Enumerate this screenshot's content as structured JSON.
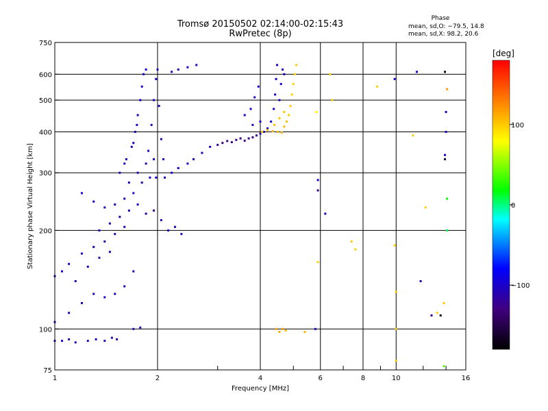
{
  "header": {
    "title_line1": "Tromsø 20150502 02:14:00-02:15:43",
    "title_line2": "RwPretec (8p)",
    "phase_heading": "Phase",
    "phase_o": "mean, sd,O: −79.5, 14.8",
    "phase_x": "mean, sd,X:  98.2, 20.6"
  },
  "chart_data": {
    "type": "scatter",
    "title": "Tromsø 20150502 02:14:00-02:15:43",
    "subtitle": "RwPretec (8p)",
    "xlabel": "Frequency [MHz]",
    "ylabel": "Stationary phase Virtual Height [km]",
    "x_scale": "log",
    "y_scale": "log",
    "xlim": [
      1,
      16
    ],
    "ylim": [
      75,
      750
    ],
    "x_ticks": [
      1,
      2,
      4,
      6,
      8,
      10,
      16
    ],
    "x_tick_labels": [
      "1",
      "2",
      "4",
      "6",
      "8",
      "10",
      "16"
    ],
    "y_ticks": [
      75,
      100,
      200,
      300,
      400,
      500,
      600,
      750
    ],
    "y_tick_labels": [
      "75",
      "100",
      "200",
      "300",
      "400",
      "500",
      "600",
      "750"
    ],
    "grid": true,
    "colorbar": {
      "label": "[deg]",
      "range": [
        -180,
        180
      ],
      "ticks": [
        100,
        0,
        -100
      ],
      "tick_labels": [
        "100",
        "0",
        "−100"
      ],
      "colors": [
        "#ff0000",
        "#ff8000",
        "#ffff00",
        "#00ff00",
        "#00ffff",
        "#0000ff",
        "#400080",
        "#000000"
      ]
    },
    "series": [
      {
        "points": [
          [
            1.0,
            92,
            -110
          ],
          [
            1.05,
            92,
            -105
          ],
          [
            1.1,
            93,
            -112
          ],
          [
            1.15,
            91,
            -108
          ],
          [
            1.25,
            92,
            -110
          ],
          [
            1.32,
            93,
            -104
          ],
          [
            1.4,
            92,
            -108
          ],
          [
            1.47,
            94,
            -112
          ],
          [
            1.52,
            93,
            -106
          ],
          [
            1.7,
            100,
            -115
          ],
          [
            1.78,
            101,
            -110
          ],
          [
            1.0,
            105,
            -100
          ],
          [
            1.1,
            112,
            -105
          ],
          [
            1.2,
            120,
            -110
          ],
          [
            1.3,
            128,
            -108
          ],
          [
            1.4,
            125,
            -100
          ],
          [
            1.5,
            128,
            -104
          ],
          [
            1.6,
            135,
            -108
          ],
          [
            1.7,
            150,
            -112
          ],
          [
            1.0,
            145,
            -98
          ],
          [
            1.05,
            150,
            -102
          ],
          [
            1.1,
            158,
            -100
          ],
          [
            1.2,
            170,
            -106
          ],
          [
            1.3,
            178,
            -110
          ],
          [
            1.4,
            185,
            -108
          ],
          [
            1.5,
            195,
            -112
          ],
          [
            1.6,
            205,
            -104
          ],
          [
            1.15,
            140,
            -110
          ],
          [
            1.25,
            155,
            -106
          ],
          [
            1.35,
            165,
            -112
          ],
          [
            1.45,
            172,
            -108
          ],
          [
            1.2,
            260,
            -100
          ],
          [
            1.3,
            245,
            -104
          ],
          [
            1.4,
            235,
            -108
          ],
          [
            1.5,
            240,
            -106
          ],
          [
            1.6,
            250,
            -110
          ],
          [
            1.7,
            260,
            -112
          ],
          [
            1.8,
            280,
            -104
          ],
          [
            1.9,
            290,
            -102
          ],
          [
            1.35,
            200,
            -106
          ],
          [
            1.45,
            210,
            -110
          ],
          [
            1.55,
            220,
            -114
          ],
          [
            1.65,
            230,
            -108
          ],
          [
            1.75,
            240,
            -104
          ],
          [
            1.85,
            225,
            -112
          ],
          [
            1.95,
            230,
            -120
          ],
          [
            2.05,
            215,
            -108
          ],
          [
            2.15,
            200,
            -110
          ],
          [
            2.25,
            205,
            -104
          ],
          [
            2.35,
            195,
            -108
          ],
          [
            1.55,
            300,
            -110
          ],
          [
            1.62,
            330,
            -106
          ],
          [
            1.68,
            360,
            -104
          ],
          [
            1.72,
            400,
            -102
          ],
          [
            1.75,
            450,
            -100
          ],
          [
            1.78,
            500,
            -98
          ],
          [
            1.8,
            550,
            -100
          ],
          [
            1.82,
            600,
            -104
          ],
          [
            1.85,
            620,
            -102
          ],
          [
            1.6,
            320,
            -100
          ],
          [
            1.7,
            370,
            -96
          ],
          [
            1.74,
            420,
            -100
          ],
          [
            1.65,
            280,
            -104
          ],
          [
            1.75,
            300,
            -108
          ],
          [
            1.85,
            320,
            -110
          ],
          [
            1.95,
            330,
            -106
          ],
          [
            1.88,
            350,
            -104
          ],
          [
            1.92,
            420,
            -108
          ],
          [
            1.95,
            500,
            -102
          ],
          [
            1.98,
            580,
            -100
          ],
          [
            2.0,
            620,
            -104
          ],
          [
            2.02,
            480,
            -110
          ],
          [
            2.05,
            380,
            -108
          ],
          [
            2.08,
            330,
            -106
          ],
          [
            1.98,
            290,
            -100
          ],
          [
            2.1,
            290,
            -104
          ],
          [
            2.2,
            300,
            -100
          ],
          [
            2.3,
            310,
            -98
          ],
          [
            2.45,
            320,
            -100
          ],
          [
            2.55,
            330,
            -102
          ],
          [
            2.7,
            345,
            -100
          ],
          [
            2.85,
            360,
            -104
          ],
          [
            2.2,
            610,
            -100
          ],
          [
            2.3,
            620,
            -102
          ],
          [
            2.45,
            630,
            -98
          ],
          [
            2.6,
            640,
            -100
          ],
          [
            3.0,
            365,
            -120
          ],
          [
            3.1,
            370,
            -125
          ],
          [
            3.2,
            375,
            -130
          ],
          [
            3.3,
            372,
            -128
          ],
          [
            3.4,
            378,
            -126
          ],
          [
            3.5,
            382,
            -132
          ],
          [
            3.6,
            376,
            -130
          ],
          [
            3.7,
            382,
            -126
          ],
          [
            3.8,
            385,
            -122
          ],
          [
            3.9,
            390,
            -118
          ],
          [
            4.0,
            395,
            -116
          ],
          [
            4.1,
            400,
            -110
          ],
          [
            4.2,
            410,
            -100
          ],
          [
            4.3,
            430,
            -96
          ],
          [
            4.38,
            470,
            -94
          ],
          [
            4.42,
            520,
            -96
          ],
          [
            4.45,
            580,
            -98
          ],
          [
            4.48,
            640,
            -100
          ],
          [
            3.6,
            450,
            -100
          ],
          [
            3.75,
            470,
            -98
          ],
          [
            3.85,
            510,
            -100
          ],
          [
            3.95,
            550,
            -102
          ],
          [
            3.8,
            420,
            -104
          ],
          [
            4.0,
            430,
            -106
          ],
          [
            4.55,
            500,
            -104
          ],
          [
            4.6,
            560,
            -102
          ],
          [
            4.65,
            620,
            -100
          ],
          [
            4.7,
            600,
            -104
          ],
          [
            4.05,
            400,
            100
          ],
          [
            4.2,
            405,
            105
          ],
          [
            4.35,
            402,
            110
          ],
          [
            4.5,
            400,
            108
          ],
          [
            4.62,
            398,
            112
          ],
          [
            4.7,
            415,
            110
          ],
          [
            4.78,
            430,
            106
          ],
          [
            4.85,
            450,
            104
          ],
          [
            4.9,
            480,
            102
          ],
          [
            4.95,
            520,
            100
          ],
          [
            5.0,
            560,
            98
          ],
          [
            5.05,
            600,
            96
          ],
          [
            5.1,
            640,
            100
          ],
          [
            4.4,
            420,
            108
          ],
          [
            4.55,
            440,
            104
          ],
          [
            4.7,
            460,
            102
          ],
          [
            4.45,
            100,
            115
          ],
          [
            4.55,
            98,
            112
          ],
          [
            4.65,
            100,
            120
          ],
          [
            4.75,
            99,
            110
          ],
          [
            5.4,
            98,
            110
          ],
          [
            5.8,
            100,
            -110
          ],
          [
            5.85,
            460,
            80
          ],
          [
            5.9,
            285,
            -100
          ],
          [
            5.9,
            265,
            -120
          ],
          [
            5.9,
            160,
            100
          ],
          [
            6.2,
            225,
            -100
          ],
          [
            6.4,
            600,
            100
          ],
          [
            6.5,
            500,
            100
          ],
          [
            7.4,
            185,
            100
          ],
          [
            7.6,
            175,
            100
          ],
          [
            8.8,
            550,
            100
          ],
          [
            9.9,
            580,
            -100
          ],
          [
            9.9,
            180,
            100
          ],
          [
            10.0,
            130,
            100
          ],
          [
            10.0,
            80,
            100
          ],
          [
            10.0,
            100,
            100
          ],
          [
            11.2,
            390,
            100
          ],
          [
            11.5,
            610,
            -100
          ],
          [
            11.8,
            140,
            -110
          ],
          [
            12.2,
            235,
            100
          ],
          [
            12.7,
            110,
            -120
          ],
          [
            13.2,
            112,
            100
          ],
          [
            13.5,
            110,
            -170
          ],
          [
            13.9,
            340,
            -100
          ],
          [
            13.9,
            330,
            -160
          ],
          [
            14.1,
            250,
            20
          ],
          [
            14.1,
            540,
            120
          ],
          [
            14.1,
            200,
            10
          ],
          [
            14.0,
            400,
            -100
          ],
          [
            13.9,
            610,
            -170
          ],
          [
            13.8,
            120,
            100
          ],
          [
            13.8,
            77,
            40
          ],
          [
            14.0,
            460,
            -100
          ]
        ]
      }
    ]
  }
}
